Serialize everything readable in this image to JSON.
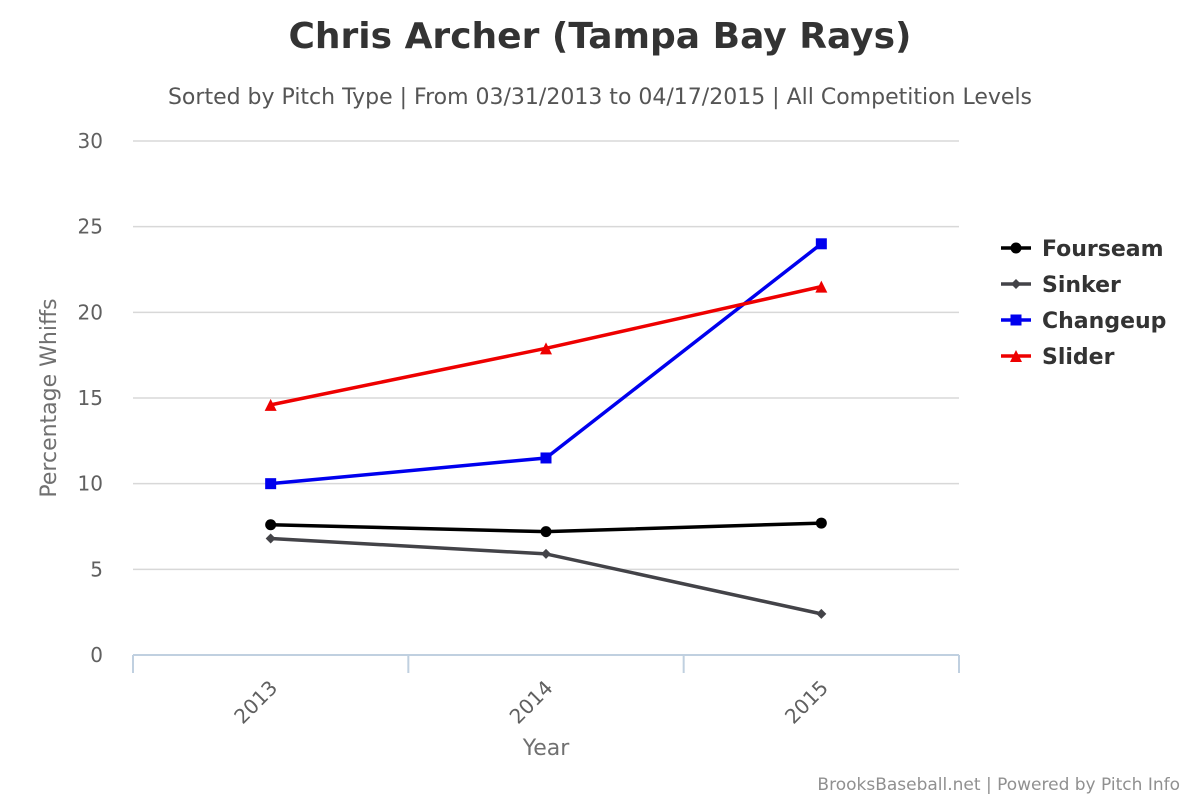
{
  "chart_data": {
    "type": "line",
    "title": "Chris Archer (Tampa Bay Rays)",
    "subtitle": "Sorted by Pitch Type | From 03/31/2013 to 04/17/2015 | All Competition Levels",
    "xlabel": "Year",
    "ylabel": "Percentage Whiffs",
    "categories": [
      "2013",
      "2014",
      "2015"
    ],
    "ylim": [
      0,
      30
    ],
    "yticks": [
      0,
      5,
      10,
      15,
      20,
      25,
      30
    ],
    "grid": true,
    "legend_position": "right",
    "series": [
      {
        "name": "Fourseam",
        "color": "#000000",
        "marker": "circle",
        "values": [
          7.6,
          7.2,
          7.7
        ]
      },
      {
        "name": "Sinker",
        "color": "#434348",
        "marker": "diamond",
        "values": [
          6.8,
          5.9,
          2.4
        ]
      },
      {
        "name": "Changeup",
        "color": "#0000ee",
        "marker": "square",
        "values": [
          10.0,
          11.5,
          24.0
        ]
      },
      {
        "name": "Slider",
        "color": "#ee0000",
        "marker": "triangle",
        "values": [
          14.6,
          17.9,
          21.5
        ]
      }
    ]
  },
  "credits": "BrooksBaseball.net | Powered by Pitch Info"
}
